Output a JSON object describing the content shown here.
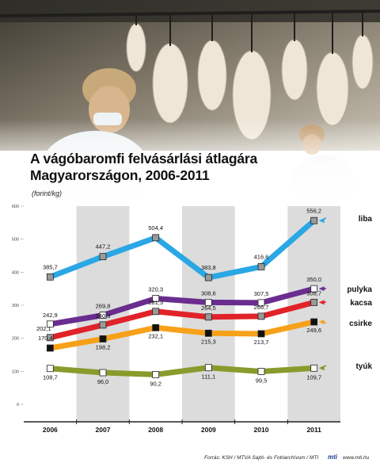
{
  "title_line1": "A vágóbaromfi felvásárlási átlagára",
  "title_line2": "Magyarországon, 2006-2011",
  "unit": "(forint/kg)",
  "footer": {
    "source": "Forrás: KSH / MTVA Sajtó- és Fotóarchívum / MTI",
    "logo": "mti",
    "url": "www.mti.hu"
  },
  "colors": {
    "liba": "#2aa7e4",
    "pulyka": "#6a2d8f",
    "kacsa": "#e02328",
    "csirke": "#f7a11a",
    "tyuk": "#8a9a2c",
    "band": "#dcdcdc"
  },
  "chart_data": {
    "type": "line",
    "title": "A vágóbaromfi felvásárlási átlagára Magyarországon, 2006-2011",
    "xlabel": "",
    "ylabel": "(forint/kg)",
    "categories": [
      "2006",
      "2007",
      "2008",
      "2009",
      "2010",
      "2011"
    ],
    "ylim": [
      0,
      600
    ],
    "yticks": [
      "0",
      "100",
      "200",
      "300",
      "400",
      "500",
      "600"
    ],
    "grid": "vertical bands on alternate years",
    "legend": "right, labels at line ends",
    "series": [
      {
        "name": "liba",
        "key": "liba",
        "values": [
          385.7,
          447.2,
          504.4,
          383.8,
          416.6,
          556.2
        ],
        "labels": [
          "385,7",
          "447,2",
          "504,4",
          "383,8",
          "416,6",
          "556,2"
        ],
        "marker": "grey"
      },
      {
        "name": "pulyka",
        "key": "pulyka",
        "values": [
          242.9,
          269.8,
          320.3,
          308.6,
          307.5,
          350.0
        ],
        "labels": [
          "242,9",
          "269,8",
          "320,3",
          "308,6",
          "307,5",
          "350,0"
        ],
        "marker": "white"
      },
      {
        "name": "kacsa",
        "key": "kacsa",
        "values": [
          202.1,
          240.3,
          281.3,
          264.5,
          266.7,
          308.7
        ],
        "labels": [
          "202,1",
          "240,3",
          "281,3",
          "264,5",
          "266,7",
          "308,7"
        ],
        "marker": "grey"
      },
      {
        "name": "csirke",
        "key": "csirke",
        "values": [
          170.4,
          198.2,
          232.1,
          215.3,
          213.7,
          249.6
        ],
        "labels": [
          "170,4",
          "198,2",
          "232,1",
          "215,3",
          "213,7",
          "249,6"
        ],
        "marker": "black"
      },
      {
        "name": "tyúk",
        "key": "tyuk",
        "values": [
          108.7,
          96.0,
          90.2,
          111.1,
          99.5,
          109.7
        ],
        "labels": [
          "108,7",
          "96,0",
          "90,2",
          "111,1",
          "99,5",
          "109,7"
        ],
        "marker": "white"
      }
    ]
  }
}
